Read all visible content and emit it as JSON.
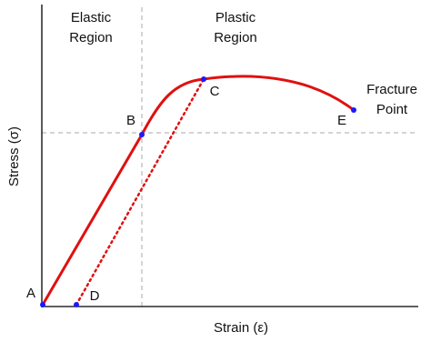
{
  "axes": {
    "x_label": "Strain (ε)",
    "y_label": "Stress (σ)"
  },
  "regions": [
    {
      "lines": [
        "Elastic",
        "Region"
      ]
    },
    {
      "lines": [
        "Plastic",
        "Region"
      ]
    }
  ],
  "annotation": {
    "lines": [
      "Fracture",
      "Point"
    ]
  },
  "points": [
    {
      "label": "A"
    },
    {
      "label": "B"
    },
    {
      "label": "C"
    },
    {
      "label": "D"
    },
    {
      "label": "E"
    }
  ]
}
